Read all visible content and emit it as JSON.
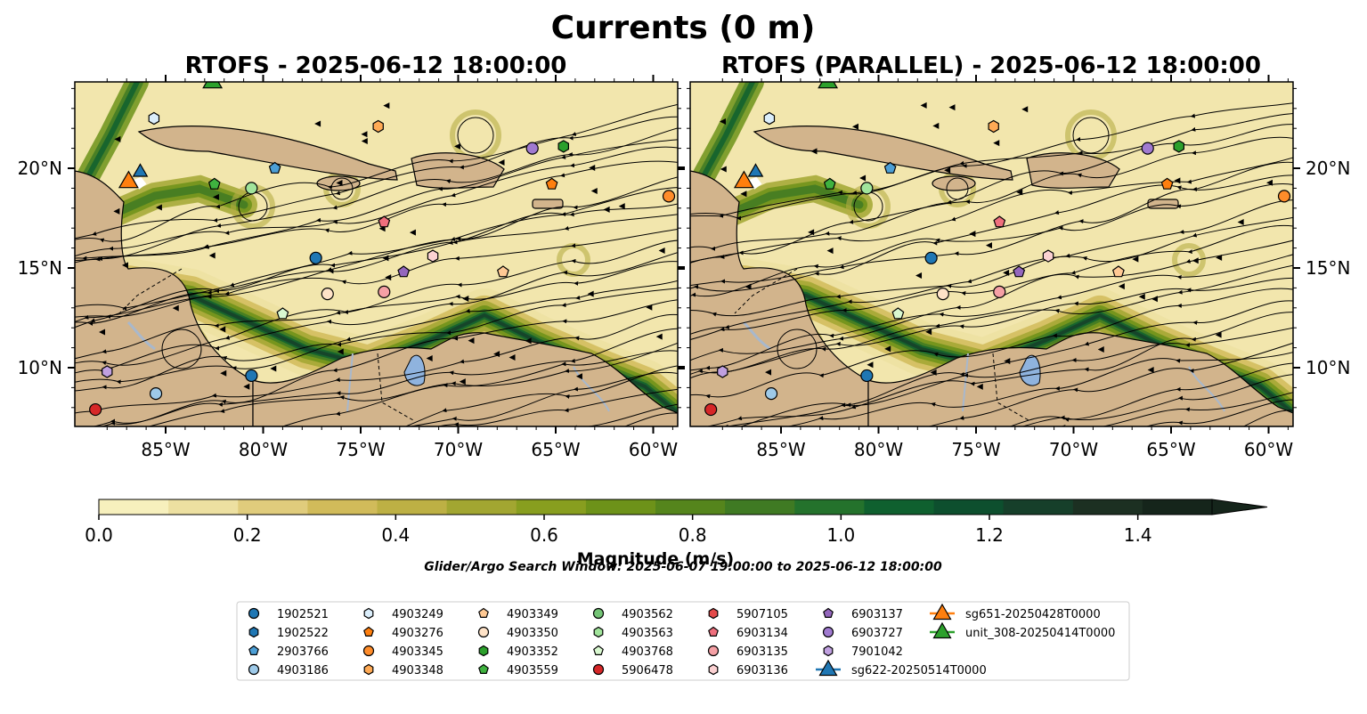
{
  "figure": {
    "suptitle": "Currents (0 m)",
    "panels": [
      {
        "title": "RTOFS - 2025-06-12 18:00:00"
      },
      {
        "title": "RTOFS (PARALLEL) - 2025-06-12 18:00:00"
      }
    ],
    "lon_ticks": [
      "85°W",
      "80°W",
      "75°W",
      "70°W",
      "65°W",
      "60°W"
    ],
    "lat_ticks": [
      "20°N",
      "15°N",
      "10°N"
    ],
    "colorbar": {
      "label": "Magnitude (m/s)",
      "ticks": [
        "0.0",
        "0.2",
        "0.4",
        "0.6",
        "0.8",
        "1.0",
        "1.2",
        "1.4"
      ],
      "colors": [
        "#f7f0bd",
        "#ede0a1",
        "#e0cc7c",
        "#d1bb5a",
        "#bdb044",
        "#a2a631",
        "#889e1f",
        "#6d9219",
        "#55851c",
        "#3f7a23",
        "#24722c",
        "#0f602f",
        "#0d4f2e",
        "#163f2a",
        "#1c3022",
        "#15251b"
      ]
    },
    "search_window": "Glider/Argo Search Window: 2025-06-07 19:00:00 to 2025-06-12 18:00:00",
    "legend": [
      {
        "label": "1902521",
        "marker": "circle",
        "color": "#1f77b4"
      },
      {
        "label": "1902522",
        "marker": "hexagon",
        "color": "#1f77b4"
      },
      {
        "label": "2903766",
        "marker": "pentagon",
        "color": "#4c9fd6"
      },
      {
        "label": "4903186",
        "marker": "circle",
        "color": "#9ecae9"
      },
      {
        "label": "4903249",
        "marker": "hexagon",
        "color": "#dbeefb"
      },
      {
        "label": "4903276",
        "marker": "pentagon",
        "color": "#ff7f0e"
      },
      {
        "label": "4903345",
        "marker": "circle",
        "color": "#ff8c2a"
      },
      {
        "label": "4903348",
        "marker": "hexagon",
        "color": "#ffaa55"
      },
      {
        "label": "4903349",
        "marker": "pentagon",
        "color": "#ffc994"
      },
      {
        "label": "4903350",
        "marker": "circle",
        "color": "#ffe3c8"
      },
      {
        "label": "4903352",
        "marker": "hexagon",
        "color": "#2ca02c"
      },
      {
        "label": "4903559",
        "marker": "pentagon",
        "color": "#3fb23f"
      },
      {
        "label": "4903562",
        "marker": "circle",
        "color": "#74c476"
      },
      {
        "label": "4903563",
        "marker": "hexagon",
        "color": "#a1e49b"
      },
      {
        "label": "4903768",
        "marker": "pentagon",
        "color": "#d9f8d0"
      },
      {
        "label": "5906478",
        "marker": "circle",
        "color": "#d62728"
      },
      {
        "label": "5907105",
        "marker": "hexagon",
        "color": "#e34a4a"
      },
      {
        "label": "6903134",
        "marker": "pentagon",
        "color": "#ef6f7d"
      },
      {
        "label": "6903135",
        "marker": "circle",
        "color": "#f5a0a5"
      },
      {
        "label": "6903136",
        "marker": "hexagon",
        "color": "#fbd1d2"
      },
      {
        "label": "6903137",
        "marker": "pentagon",
        "color": "#9467bd"
      },
      {
        "label": "6903727",
        "marker": "circle",
        "color": "#a07ad0"
      },
      {
        "label": "7901042",
        "marker": "hexagon",
        "color": "#c0a0e0"
      },
      {
        "label": "sg622-20250514T0000",
        "marker": "triangle",
        "color": "#1f77b4"
      },
      {
        "label": "sg651-20250428T0000",
        "marker": "triangle",
        "color": "#ff7f0e"
      },
      {
        "label": "unit_308-20250414T0000",
        "marker": "triangle",
        "color": "#2ca02c"
      }
    ],
    "land_color": "#d2b48c",
    "river_color": "#a8b8cc",
    "lake_color": "#8fb3de"
  }
}
